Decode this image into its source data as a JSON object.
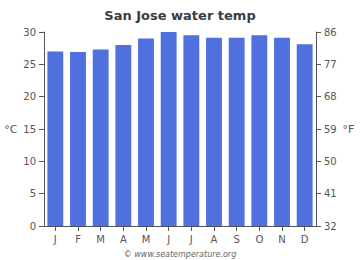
{
  "chart_data": {
    "type": "bar",
    "title": "San Jose water temp",
    "categories": [
      "J",
      "F",
      "M",
      "A",
      "M",
      "J",
      "J",
      "A",
      "S",
      "O",
      "N",
      "D"
    ],
    "values": [
      27.0,
      26.9,
      27.3,
      28.0,
      29.0,
      30.0,
      29.5,
      29.1,
      29.1,
      29.5,
      29.1,
      28.1
    ],
    "ylabel": "°C",
    "y2label": "°F",
    "ylim": [
      0,
      30
    ],
    "yticks": [
      0,
      5,
      10,
      15,
      20,
      25,
      30
    ],
    "y2lim": [
      32,
      86
    ],
    "y2ticks": [
      32,
      41,
      50,
      59,
      68,
      77,
      86
    ],
    "grid": false,
    "annotations": [
      "© www.seatemperature.org"
    ]
  }
}
